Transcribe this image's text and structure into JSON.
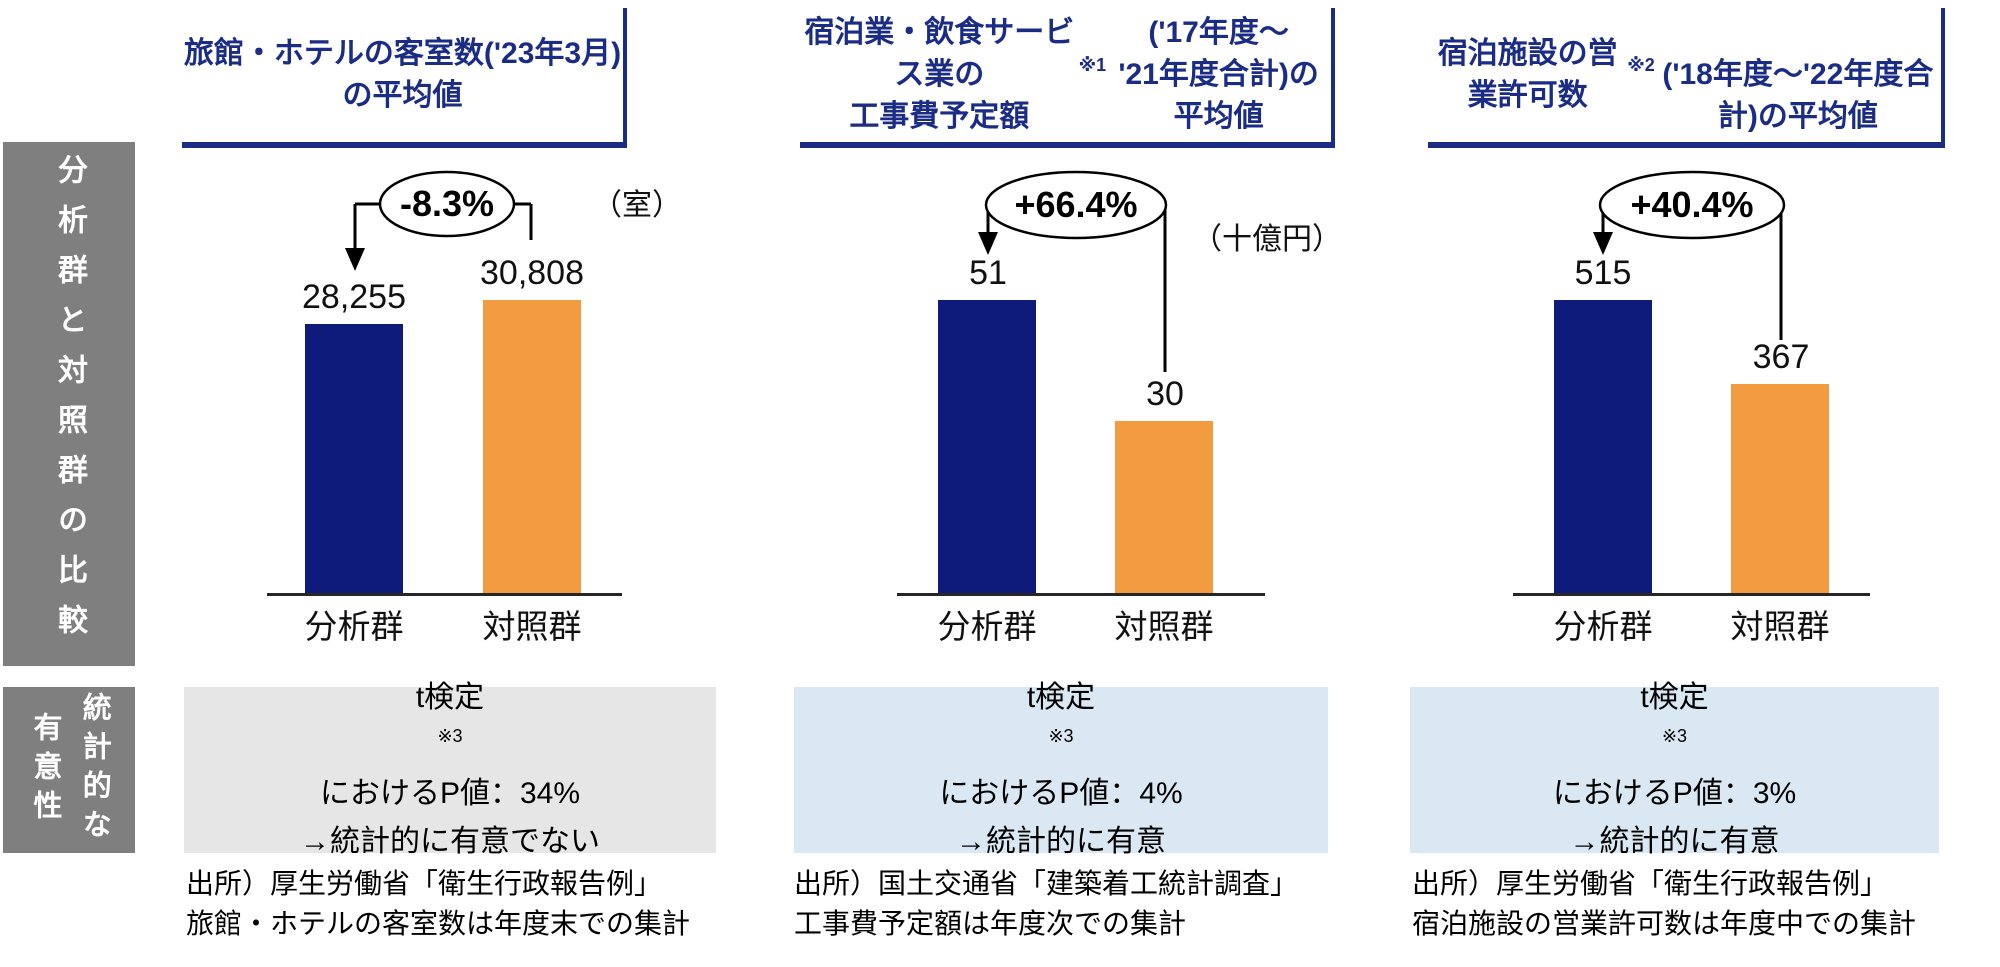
{
  "page": {
    "background": "#FFFFFF"
  },
  "sidebar": {
    "bg_color": "#7F7F7F",
    "text_color": "#FFFFFF",
    "row1_label": "分析群と対照群の比較",
    "row2_label": "統計的な\n有意性"
  },
  "chart_data": [
    {
      "type": "bar",
      "title": "旅館・ホテルの客室数('23年3月)\nの平均値",
      "unit": "（室）",
      "categories": [
        "分析群",
        "対照群"
      ],
      "values": [
        28255,
        30808
      ],
      "value_labels": [
        "28,255",
        "30,808"
      ],
      "change_label": "-8.3%",
      "bar_colors": [
        "#0F1B7B",
        "#F29B40"
      ],
      "p_value": "34%",
      "p_value_text": "t検定※3におけるP値：34%\n→統計的に有意でない",
      "significant": false,
      "box_color": "#E7E6E6",
      "source": "出所）厚生労働省「衛生行政報告例」\n旅館・ホテルの客室数は年度末での集計"
    },
    {
      "type": "bar",
      "title": "宿泊業・飲食サービス業の\n工事費予定額※1('17年度～\n'21年度合計)の平均値",
      "unit": "（十億円）",
      "categories": [
        "分析群",
        "対照群"
      ],
      "values": [
        51,
        30
      ],
      "value_labels": [
        "51",
        "30"
      ],
      "change_label": "+66.4%",
      "bar_colors": [
        "#0F1B7B",
        "#F29B40"
      ],
      "p_value": "4%",
      "p_value_text": "t検定※3におけるP値：4%\n→統計的に有意",
      "significant": true,
      "box_color": "#DAE8F3",
      "source": "出所）国土交通省「建築着工統計調査」\n工事費予定額は年度次での集計"
    },
    {
      "type": "bar",
      "title": "宿泊施設の営業許可数※2\n('18年度～'22年度合計)の平均値",
      "unit": "",
      "categories": [
        "分析群",
        "対照群"
      ],
      "values": [
        515,
        367
      ],
      "value_labels": [
        "515",
        "367"
      ],
      "change_label": "+40.4%",
      "bar_colors": [
        "#0F1B7B",
        "#F29B40"
      ],
      "p_value": "3%",
      "p_value_text": "t検定※3におけるP値：3%\n→統計的に有意",
      "significant": true,
      "box_color": "#DAE8F3",
      "source": "出所）厚生労働省「衛生行政報告例」\n宿泊施設の営業許可数は年度中での集計"
    }
  ]
}
